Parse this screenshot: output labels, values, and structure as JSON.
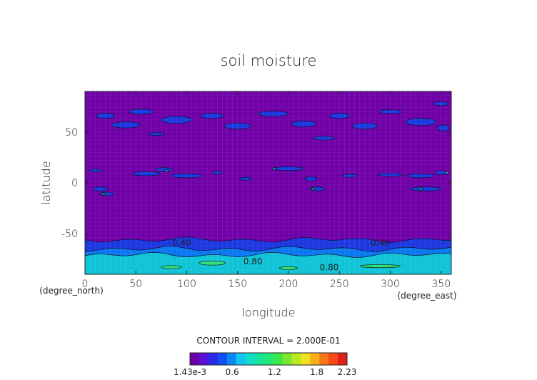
{
  "chart_data": {
    "type": "heatmap",
    "title": "soil moisture",
    "xlabel": "longitude",
    "ylabel": "latitude",
    "x_unit": "(degree_east)",
    "y_unit": "(degree_north)",
    "xlim": [
      0,
      360
    ],
    "ylim": [
      -90,
      90
    ],
    "x_ticks": [
      "0",
      "50",
      "100",
      "150",
      "200",
      "250",
      "300",
      "350"
    ],
    "x_tick_values": [
      0,
      50,
      100,
      150,
      200,
      250,
      300,
      350
    ],
    "y_ticks": [
      "50",
      "0",
      "-50"
    ],
    "y_tick_values": [
      50,
      0,
      -50
    ],
    "contour_interval_text": "CONTOUR INTERVAL = 2.000E-01",
    "contour_labels": [
      {
        "text": "0.40",
        "lon": 95,
        "lat": -62
      },
      {
        "text": "0.40",
        "lon": 290,
        "lat": -62
      },
      {
        "text": "0.80",
        "lon": 165,
        "lat": -80
      },
      {
        "text": "0.80",
        "lon": 240,
        "lat": -86
      }
    ],
    "colorbar": {
      "min_label": "1.43e-3",
      "labels": [
        "0.6",
        "1.2",
        "1.8",
        "2.23"
      ],
      "label_values": [
        0.6,
        1.2,
        1.8,
        2.23
      ],
      "min": 0.00143,
      "max": 2.23,
      "colors": [
        "#6c00a8",
        "#5a10d8",
        "#2a2ae8",
        "#1050f0",
        "#0c88f4",
        "#16c4f0",
        "#10dcc8",
        "#18e4a0",
        "#22e878",
        "#3ae848",
        "#7ae830",
        "#b8e820",
        "#f0e020",
        "#f8b018",
        "#f87818",
        "#f84818",
        "#e02018"
      ]
    },
    "regions": {
      "background_color": "#7000a8",
      "blue_color": "#1c38e0",
      "medium_blue_color": "#0a78f0",
      "cyan_color": "#10c4d8",
      "green_color": "#30e07c",
      "antarctic_bands_lat": [
        {
          "from": -56,
          "to": -90,
          "color": "#1c38e0"
        },
        {
          "from": -65,
          "to": -90,
          "color": "#0a78f0"
        },
        {
          "from": -71,
          "to": -90,
          "color": "#10c4d8"
        }
      ],
      "patches_blue": [
        {
          "lon": 20,
          "lat": 66,
          "w": 18,
          "h": 5
        },
        {
          "lon": 55,
          "lat": 70,
          "w": 24,
          "h": 5
        },
        {
          "lon": 40,
          "lat": 57,
          "w": 28,
          "h": 6
        },
        {
          "lon": 90,
          "lat": 62,
          "w": 30,
          "h": 7
        },
        {
          "lon": 125,
          "lat": 66,
          "w": 22,
          "h": 5
        },
        {
          "lon": 150,
          "lat": 56,
          "w": 26,
          "h": 6
        },
        {
          "lon": 185,
          "lat": 68,
          "w": 30,
          "h": 5
        },
        {
          "lon": 215,
          "lat": 58,
          "w": 24,
          "h": 6
        },
        {
          "lon": 250,
          "lat": 66,
          "w": 20,
          "h": 5
        },
        {
          "lon": 275,
          "lat": 56,
          "w": 24,
          "h": 6
        },
        {
          "lon": 300,
          "lat": 70,
          "w": 22,
          "h": 4
        },
        {
          "lon": 330,
          "lat": 60,
          "w": 30,
          "h": 7
        },
        {
          "lon": 352,
          "lat": 54,
          "w": 12,
          "h": 6
        },
        {
          "lon": 70,
          "lat": 48,
          "w": 16,
          "h": 3
        },
        {
          "lon": 235,
          "lat": 44,
          "w": 20,
          "h": 4
        },
        {
          "lon": 350,
          "lat": 78,
          "w": 14,
          "h": 4
        }
      ],
      "patches_tropic": [
        {
          "lon": 10,
          "lat": 12,
          "w": 12,
          "h": 3
        },
        {
          "lon": 15,
          "lat": -6,
          "w": 14,
          "h": 4
        },
        {
          "lon": 22,
          "lat": -11,
          "w": 12,
          "h": 4
        },
        {
          "lon": 60,
          "lat": 9,
          "w": 28,
          "h": 4
        },
        {
          "lon": 78,
          "lat": 13,
          "w": 16,
          "h": 4
        },
        {
          "lon": 100,
          "lat": 7,
          "w": 30,
          "h": 4
        },
        {
          "lon": 130,
          "lat": 10,
          "w": 10,
          "h": 3
        },
        {
          "lon": 158,
          "lat": 4,
          "w": 12,
          "h": 3
        },
        {
          "lon": 200,
          "lat": 14,
          "w": 30,
          "h": 4
        },
        {
          "lon": 222,
          "lat": 4,
          "w": 12,
          "h": 4
        },
        {
          "lon": 228,
          "lat": -6,
          "w": 14,
          "h": 4
        },
        {
          "lon": 260,
          "lat": 7,
          "w": 14,
          "h": 3
        },
        {
          "lon": 300,
          "lat": 8,
          "w": 24,
          "h": 3
        },
        {
          "lon": 330,
          "lat": 7,
          "w": 26,
          "h": 4
        },
        {
          "lon": 335,
          "lat": -6,
          "w": 30,
          "h": 4
        },
        {
          "lon": 350,
          "lat": 10,
          "w": 12,
          "h": 4
        }
      ],
      "patches_hot": [
        {
          "lon": 18,
          "lat": -11,
          "w": 5,
          "h": 2
        },
        {
          "lon": 80,
          "lat": 12,
          "w": 3,
          "h": 2
        },
        {
          "lon": 186,
          "lat": 14,
          "w": 3,
          "h": 2
        },
        {
          "lon": 224,
          "lat": -6,
          "w": 4,
          "h": 2
        },
        {
          "lon": 330,
          "lat": -6,
          "w": 4,
          "h": 2
        },
        {
          "lon": 356,
          "lat": 10,
          "w": 3,
          "h": 2
        }
      ],
      "patches_green": [
        {
          "lon": 125,
          "lat": -79,
          "w": 26,
          "h": 4
        },
        {
          "lon": 85,
          "lat": -83,
          "w": 20,
          "h": 3
        },
        {
          "lon": 290,
          "lat": -82,
          "w": 40,
          "h": 3
        },
        {
          "lon": 200,
          "lat": -84,
          "w": 18,
          "h": 3
        }
      ]
    }
  }
}
